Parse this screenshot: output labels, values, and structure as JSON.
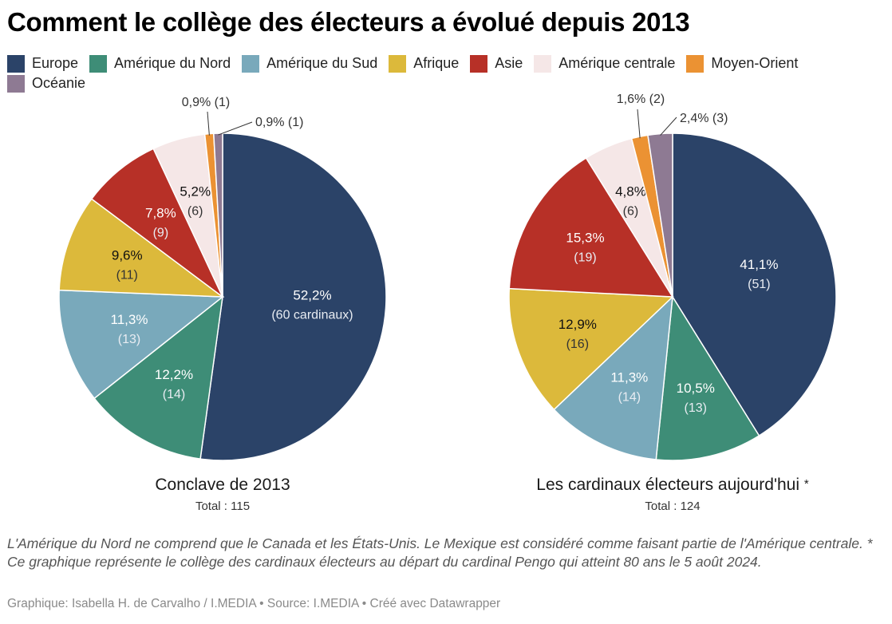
{
  "title": "Comment le collège des électeurs a évolué depuis 2013",
  "legend": [
    {
      "label": "Europe",
      "color": "#2b4368"
    },
    {
      "label": "Amérique du Nord",
      "color": "#3e8d77"
    },
    {
      "label": "Amérique du Sud",
      "color": "#79a9bb"
    },
    {
      "label": "Afrique",
      "color": "#dcb93b"
    },
    {
      "label": "Asie",
      "color": "#b73027"
    },
    {
      "label": "Amérique centrale",
      "color": "#f5e7e7"
    },
    {
      "label": "Moyen-Orient",
      "color": "#eb9233"
    },
    {
      "label": "Océanie",
      "color": "#8e7a93"
    }
  ],
  "chart_data": [
    {
      "type": "pie",
      "title": "Conclave de 2013",
      "subtitle": "Total : 115",
      "total": 115,
      "categories": [
        "Europe",
        "Amérique du Nord",
        "Amérique du Sud",
        "Afrique",
        "Asie",
        "Amérique centrale",
        "Moyen-Orient",
        "Océanie"
      ],
      "values": [
        60,
        14,
        13,
        11,
        9,
        6,
        1,
        1
      ],
      "percent_labels": [
        "52,2%",
        "12,2%",
        "11,3%",
        "9,6%",
        "7,8%",
        "5,2%",
        "0,9%",
        "0,9%"
      ],
      "count_labels": [
        "(60 cardinaux)",
        "(14)",
        "(13)",
        "(11)",
        "(9)",
        "(6)",
        "(1)",
        "(1)"
      ],
      "outside_labels": {
        "Moyen-Orient": "0,9% (1)",
        "Océanie": "0,9% (1)"
      }
    },
    {
      "type": "pie",
      "title": "Les cardinaux électeurs aujourd'hui",
      "title_suffix": "*",
      "subtitle": "Total : 124",
      "total": 124,
      "categories": [
        "Europe",
        "Amérique du Nord",
        "Amérique du Sud",
        "Afrique",
        "Asie",
        "Amérique centrale",
        "Moyen-Orient",
        "Océanie"
      ],
      "values": [
        51,
        13,
        14,
        16,
        19,
        6,
        2,
        3
      ],
      "percent_labels": [
        "41,1%",
        "10,5%",
        "11,3%",
        "12,9%",
        "15,3%",
        "4,8%",
        "1,6%",
        "2,4%"
      ],
      "count_labels": [
        "(51)",
        "(13)",
        "(14)",
        "(16)",
        "(19)",
        "(6)",
        "(2)",
        "(3)"
      ],
      "outside_labels": {
        "Moyen-Orient": "1,6% (2)",
        "Océanie": "2,4% (3)"
      }
    }
  ],
  "notes": "L'Amérique du Nord ne comprend que le Canada et les États-Unis. Le Mexique est considéré comme faisant partie de l'Amérique centrale. * Ce graphique représente le collège des cardinaux électeurs au départ du cardinal Pengo qui atteint 80 ans le 5 août 2024.",
  "credits": "Graphique: Isabella H. de Carvalho / I.MEDIA  • Source: I.MEDIA • Créé avec Datawrapper"
}
